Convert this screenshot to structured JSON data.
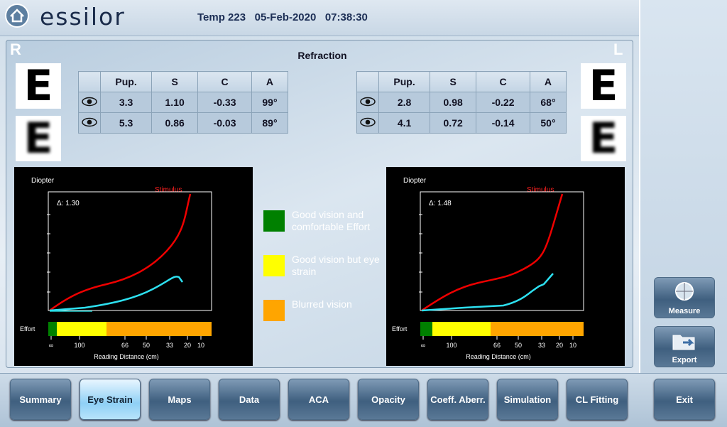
{
  "header": {
    "brand": "essilor",
    "patient": "Temp 223",
    "date": "05-Feb-2020",
    "time": "07:38:30"
  },
  "panel": {
    "title": "Refraction",
    "right_eye": "R",
    "left_eye": "L",
    "optotype": "E"
  },
  "tables": [
    {
      "columns": [
        "Pup.",
        "S",
        "C",
        "A"
      ],
      "rows": [
        [
          "3.3",
          "1.10",
          "-0.33",
          "99°"
        ],
        [
          "5.3",
          "0.86",
          "-0.03",
          "89°"
        ]
      ]
    },
    {
      "columns": [
        "Pup.",
        "S",
        "C",
        "A"
      ],
      "rows": [
        [
          "2.8",
          "0.98",
          "-0.22",
          "68°"
        ],
        [
          "4.1",
          "0.72",
          "-0.14",
          "50°"
        ]
      ]
    }
  ],
  "charts": [
    {
      "y_label": "Diopter",
      "stimulus": "Stimulus",
      "delta": "Δ: 1.30",
      "effort": "Effort",
      "x_ticks": [
        "∞",
        "100",
        "66",
        "50",
        "33",
        "20",
        "10"
      ],
      "x_label": "Reading Distance (cm)"
    },
    {
      "y_label": "Diopter",
      "stimulus": "Stimulus",
      "delta": "Δ: 1.48",
      "effort": "Effort",
      "x_ticks": [
        "∞",
        "100",
        "66",
        "50",
        "33",
        "20",
        "10"
      ],
      "x_label": "Reading Distance (cm)"
    }
  ],
  "legend": [
    {
      "label": "Good vision and comfortable Effort",
      "color": "#008000"
    },
    {
      "label": "Good vision but eye strain",
      "color": "#ffff00"
    },
    {
      "label": "Blurred vision",
      "color": "#ffa500"
    }
  ],
  "side_buttons": [
    "Measure",
    "Export"
  ],
  "tabs": [
    "Summary",
    "Eye Strain",
    "Maps",
    "Data",
    "ACA",
    "Opacity",
    "Coeff. Aberr.",
    "Simulation",
    "CL Fitting"
  ],
  "exit": "Exit"
}
